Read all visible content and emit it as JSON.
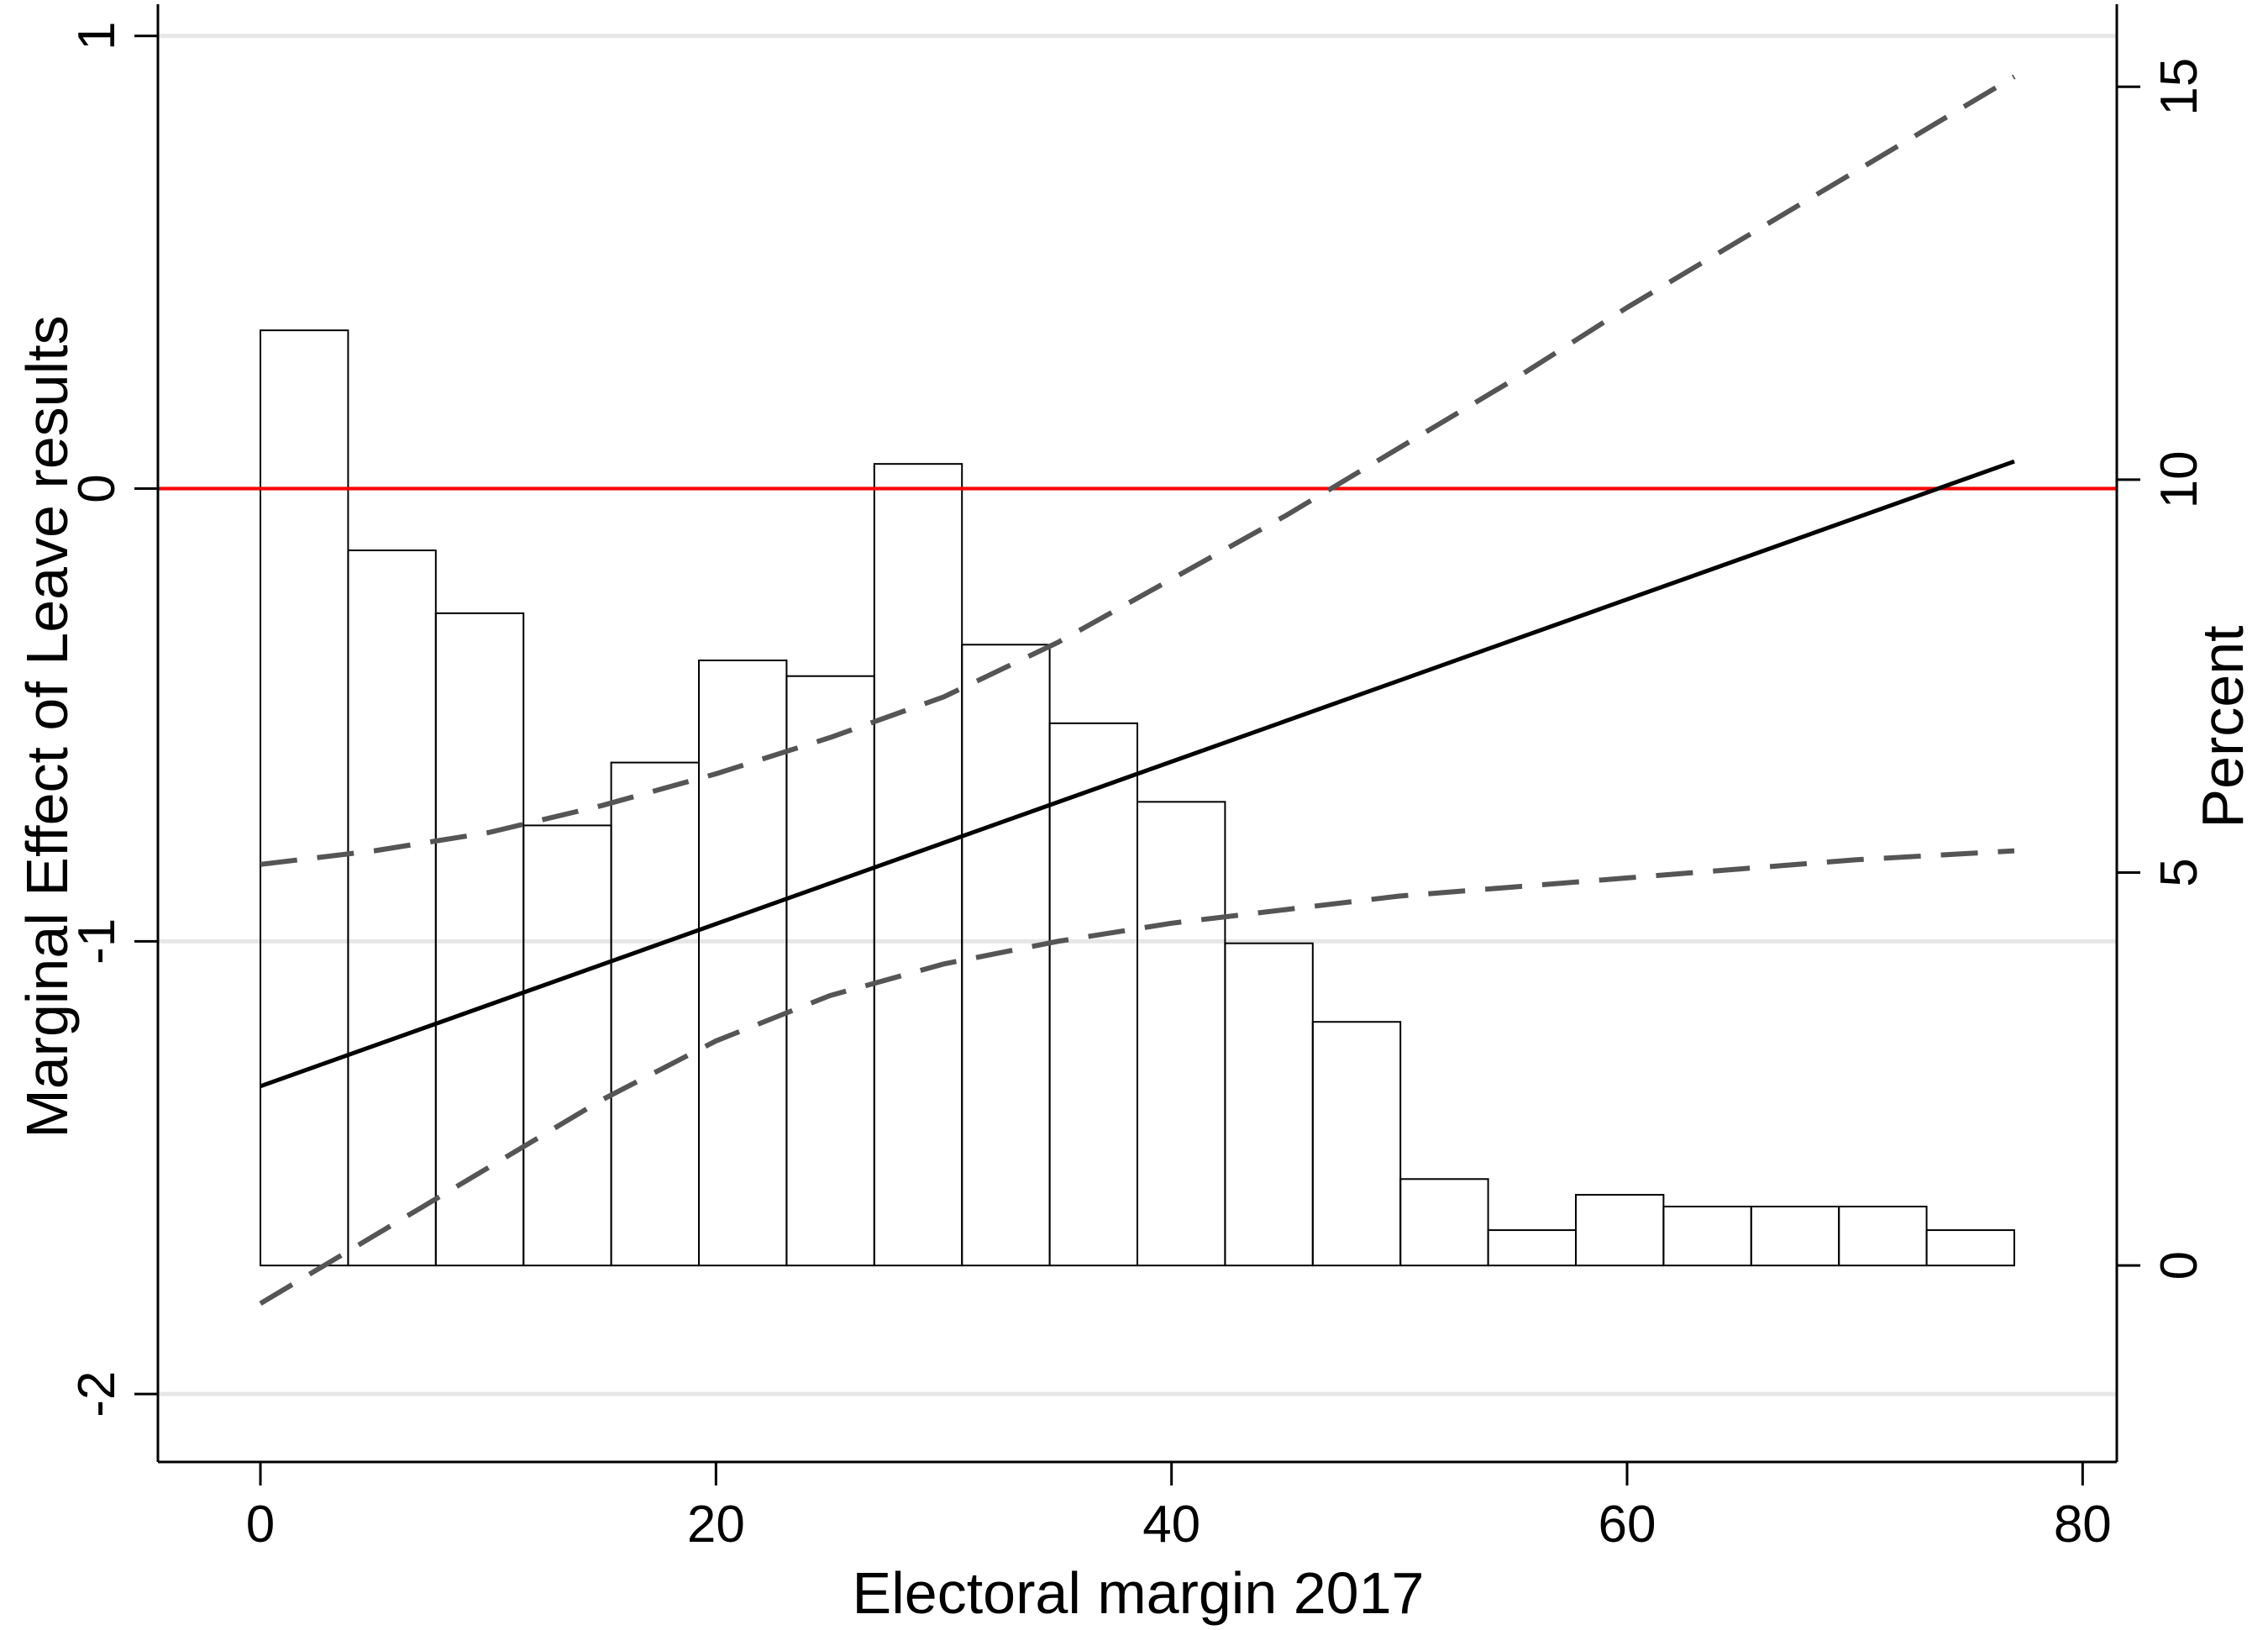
{
  "chart_data": {
    "type": "line",
    "title": "",
    "xlabel": "Electoral margin 2017",
    "ylabel": "Marginal Effect of Leave results",
    "y2label": "Percent",
    "xlim": [
      -4.5,
      81.5
    ],
    "ylim": [
      -2.15,
      1.07
    ],
    "y2lim": [
      -2.5,
      16.05
    ],
    "xticks": [
      0,
      20,
      40,
      60,
      80
    ],
    "yticks": [
      -2,
      -1,
      0,
      1
    ],
    "y2ticks": [
      0,
      5,
      10,
      15
    ],
    "x_tick_labels": [
      "0",
      "20",
      "40",
      "60",
      "80"
    ],
    "y_tick_labels": [
      "-2",
      "-1",
      "0",
      "1"
    ],
    "y2_tick_labels": [
      "0",
      "5",
      "10",
      "15"
    ],
    "grid": "horizontal at left-axis ticks",
    "reference_line": {
      "y": 0,
      "color": "#ff0000"
    },
    "colors": {
      "reference": "#ff0000",
      "effect": "#000000",
      "ci": "#555555",
      "bars": "#000000",
      "grid": "#e6e6e6"
    },
    "histogram": {
      "axis": "right",
      "bin_edges": [
        0,
        3.85,
        7.7,
        11.55,
        15.4,
        19.25,
        23.1,
        26.95,
        30.8,
        34.65,
        38.5,
        42.35,
        46.2,
        50.05,
        53.9,
        57.75,
        61.6,
        65.45,
        69.3,
        73.15,
        77
      ],
      "values": [
        11.9,
        9.1,
        8.3,
        5.6,
        6.4,
        7.7,
        7.5,
        10.2,
        7.9,
        6.9,
        5.9,
        4.1,
        3.1,
        1.1,
        0.45,
        0.9,
        0.75,
        0.75,
        0.75,
        0.45
      ]
    },
    "series": [
      {
        "role": "marginal-effect",
        "style": "solid",
        "x": [
          0,
          77
        ],
        "y": [
          -1.32,
          0.06
        ]
      },
      {
        "role": "upper-ci",
        "style": "dashed",
        "x": [
          0,
          5,
          10,
          15,
          20,
          25,
          30,
          35,
          40,
          45,
          50,
          55,
          60,
          65,
          70,
          77
        ],
        "y": [
          -0.83,
          -0.8,
          -0.76,
          -0.7,
          -0.63,
          -0.55,
          -0.46,
          -0.34,
          -0.2,
          -0.06,
          0.09,
          0.24,
          0.4,
          0.55,
          0.7,
          0.91
        ]
      },
      {
        "role": "lower-ci",
        "style": "dashed",
        "x": [
          0,
          5,
          10,
          15,
          20,
          25,
          30,
          35,
          40,
          45,
          50,
          55,
          60,
          65,
          70,
          77
        ],
        "y": [
          -1.8,
          -1.65,
          -1.5,
          -1.35,
          -1.22,
          -1.12,
          -1.05,
          -1.0,
          -0.96,
          -0.93,
          -0.9,
          -0.88,
          -0.86,
          -0.84,
          -0.82,
          -0.8
        ]
      }
    ]
  }
}
